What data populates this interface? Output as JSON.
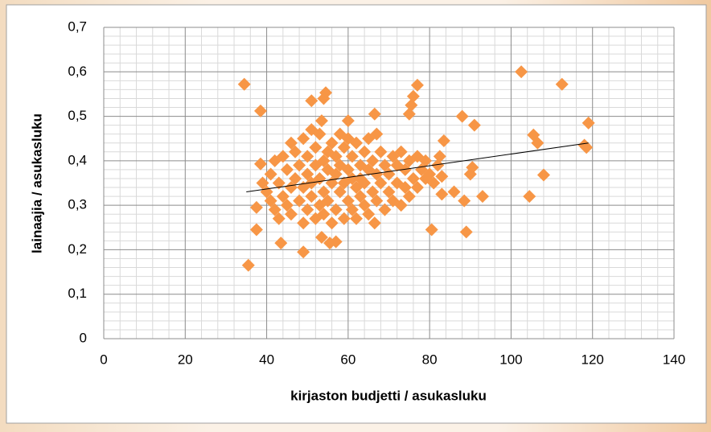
{
  "chart_data": {
    "type": "scatter",
    "x_label": "kirjaston budjetti / asukasluku",
    "y_label": "lainaajia / asukasluku",
    "x": [
      34.5,
      35.5,
      37.5,
      38.5,
      38.5,
      37.5,
      43.5,
      49,
      51,
      54,
      54.5,
      53.5,
      55.5,
      57,
      53.5,
      66.5,
      66.5,
      60,
      75,
      75.5,
      76,
      77,
      80.5,
      82.5,
      83.5,
      88,
      88.5,
      89,
      90,
      90.5,
      91,
      93,
      83,
      83,
      86,
      102.5,
      104.5,
      105.5,
      106.5,
      108,
      112.5,
      118,
      119,
      118.5,
      39,
      40,
      41,
      41,
      42,
      42,
      43,
      43,
      44,
      44,
      45,
      45,
      46,
      46,
      46,
      47,
      47,
      48,
      48,
      49,
      49,
      49,
      50,
      50,
      50,
      51,
      51,
      51,
      52,
      52,
      52,
      53,
      53,
      53,
      54,
      54,
      54,
      55,
      55,
      55,
      56,
      56,
      56,
      57,
      57,
      57,
      58,
      58,
      58,
      59,
      59,
      59,
      60,
      60,
      60,
      61,
      61,
      61,
      62,
      62,
      62,
      63,
      63,
      63,
      64,
      64,
      64,
      65,
      65,
      65,
      66,
      66,
      67,
      67,
      67,
      68,
      68,
      69,
      69,
      70,
      70,
      71,
      71,
      72,
      72,
      73,
      73,
      74,
      74,
      75,
      75,
      76,
      77,
      77,
      78,
      79,
      80,
      81,
      82,
      79
    ],
    "values": [
      0.572,
      0.165,
      0.245,
      0.512,
      0.393,
      0.295,
      0.215,
      0.195,
      0.535,
      0.54,
      0.553,
      0.49,
      0.215,
      0.218,
      0.228,
      0.505,
      0.26,
      0.49,
      0.505,
      0.525,
      0.545,
      0.57,
      0.245,
      0.41,
      0.445,
      0.5,
      0.31,
      0.24,
      0.37,
      0.385,
      0.48,
      0.32,
      0.325,
      0.365,
      0.33,
      0.6,
      0.32,
      0.458,
      0.44,
      0.368,
      0.572,
      0.435,
      0.485,
      0.43,
      0.35,
      0.33,
      0.31,
      0.37,
      0.29,
      0.4,
      0.27,
      0.35,
      0.41,
      0.32,
      0.3,
      0.38,
      0.44,
      0.34,
      0.28,
      0.36,
      0.42,
      0.31,
      0.39,
      0.26,
      0.34,
      0.45,
      0.29,
      0.37,
      0.41,
      0.32,
      0.47,
      0.35,
      0.27,
      0.39,
      0.43,
      0.3,
      0.36,
      0.46,
      0.33,
      0.4,
      0.28,
      0.38,
      0.42,
      0.31,
      0.35,
      0.26,
      0.44,
      0.29,
      0.37,
      0.41,
      0.33,
      0.46,
      0.39,
      0.27,
      0.35,
      0.43,
      0.31,
      0.38,
      0.45,
      0.29,
      0.36,
      0.41,
      0.34,
      0.27,
      0.44,
      0.32,
      0.39,
      0.36,
      0.3,
      0.42,
      0.35,
      0.28,
      0.38,
      0.45,
      0.33,
      0.4,
      0.31,
      0.37,
      0.46,
      0.35,
      0.42,
      0.29,
      0.39,
      0.33,
      0.37,
      0.41,
      0.31,
      0.35,
      0.39,
      0.3,
      0.42,
      0.34,
      0.38,
      0.32,
      0.4,
      0.36,
      0.34,
      0.41,
      0.38,
      0.36,
      0.37,
      0.35,
      0.39,
      0.4
    ],
    "color": "#f79646",
    "trendline": {
      "x": [
        35,
        119
      ],
      "values": [
        0.33,
        0.44
      ],
      "color": "#000000"
    },
    "xlim": [
      0,
      140
    ],
    "xticks": [
      0,
      20,
      40,
      60,
      80,
      100,
      120,
      140
    ],
    "ylim": [
      0,
      0.7
    ],
    "yticks": [
      0,
      {
        "value": 0.1,
        "label": "0,1"
      },
      {
        "value": 0.2,
        "label": "0,2"
      },
      {
        "value": 0.3,
        "label": "0,3"
      },
      {
        "value": 0.4,
        "label": "0,4"
      },
      {
        "value": 0.5,
        "label": "0,5"
      },
      {
        "value": 0.6,
        "label": "0,6"
      },
      {
        "value": 0.7,
        "label": "0,7"
      }
    ],
    "grid": true,
    "minor_grid_divisions": 5
  }
}
